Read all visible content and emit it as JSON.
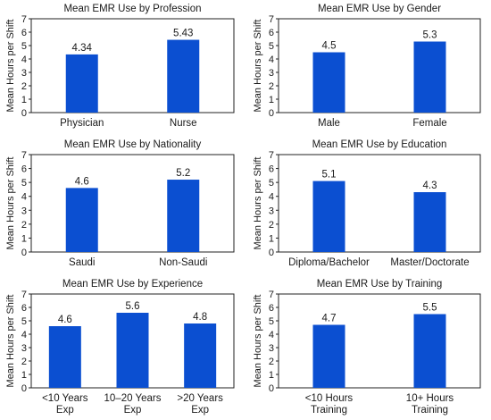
{
  "bar_color": "#0b4fd1",
  "chart_data": [
    {
      "type": "bar",
      "title": "Mean EMR Use by Profession",
      "ylabel": "Mean Hours per Shift",
      "ylim": [
        0,
        7
      ],
      "yticks": [
        0,
        1,
        2,
        3,
        4,
        5,
        6,
        7
      ],
      "categories": [
        [
          "Physician"
        ],
        [
          "Nurse"
        ]
      ],
      "values": [
        4.34,
        5.43
      ],
      "value_labels": [
        "4.34",
        "5.43"
      ]
    },
    {
      "type": "bar",
      "title": "Mean EMR Use by Gender",
      "ylabel": "Mean Hours per Shift",
      "ylim": [
        0,
        7
      ],
      "yticks": [
        0,
        1,
        2,
        3,
        4,
        5,
        6,
        7
      ],
      "categories": [
        [
          "Male"
        ],
        [
          "Female"
        ]
      ],
      "values": [
        4.5,
        5.3
      ],
      "value_labels": [
        "4.5",
        "5.3"
      ]
    },
    {
      "type": "bar",
      "title": "Mean EMR Use by Nationality",
      "ylabel": "Mean Hours per Shift",
      "ylim": [
        0,
        7
      ],
      "yticks": [
        0,
        1,
        2,
        3,
        4,
        5,
        6,
        7
      ],
      "categories": [
        [
          "Saudi"
        ],
        [
          "Non-Saudi"
        ]
      ],
      "values": [
        4.6,
        5.2
      ],
      "value_labels": [
        "4.6",
        "5.2"
      ]
    },
    {
      "type": "bar",
      "title": "Mean EMR Use by Education",
      "ylabel": "Mean Hours per Shift",
      "ylim": [
        0,
        7
      ],
      "yticks": [
        0,
        1,
        2,
        3,
        4,
        5,
        6,
        7
      ],
      "categories": [
        [
          "Diploma/Bachelor"
        ],
        [
          "Master/Doctorate"
        ]
      ],
      "values": [
        5.1,
        4.3
      ],
      "value_labels": [
        "5.1",
        "4.3"
      ]
    },
    {
      "type": "bar",
      "title": "Mean EMR Use by Experience",
      "ylabel": "Mean Hours per Shift",
      "ylim": [
        0,
        7
      ],
      "yticks": [
        0,
        1,
        2,
        3,
        4,
        5,
        6,
        7
      ],
      "categories": [
        [
          "<10 Years",
          "Exp"
        ],
        [
          "10–20 Years",
          "Exp"
        ],
        [
          ">20 Years",
          "Exp"
        ]
      ],
      "values": [
        4.6,
        5.6,
        4.8
      ],
      "value_labels": [
        "4.6",
        "5.6",
        "4.8"
      ]
    },
    {
      "type": "bar",
      "title": "Mean EMR Use by Training",
      "ylabel": "Mean Hours per Shift",
      "ylim": [
        0,
        7
      ],
      "yticks": [
        0,
        1,
        2,
        3,
        4,
        5,
        6,
        7
      ],
      "categories": [
        [
          "<10 Hours",
          "Training"
        ],
        [
          "10+ Hours",
          "Training"
        ]
      ],
      "values": [
        4.7,
        5.5
      ],
      "value_labels": [
        "4.7",
        "5.5"
      ]
    }
  ]
}
